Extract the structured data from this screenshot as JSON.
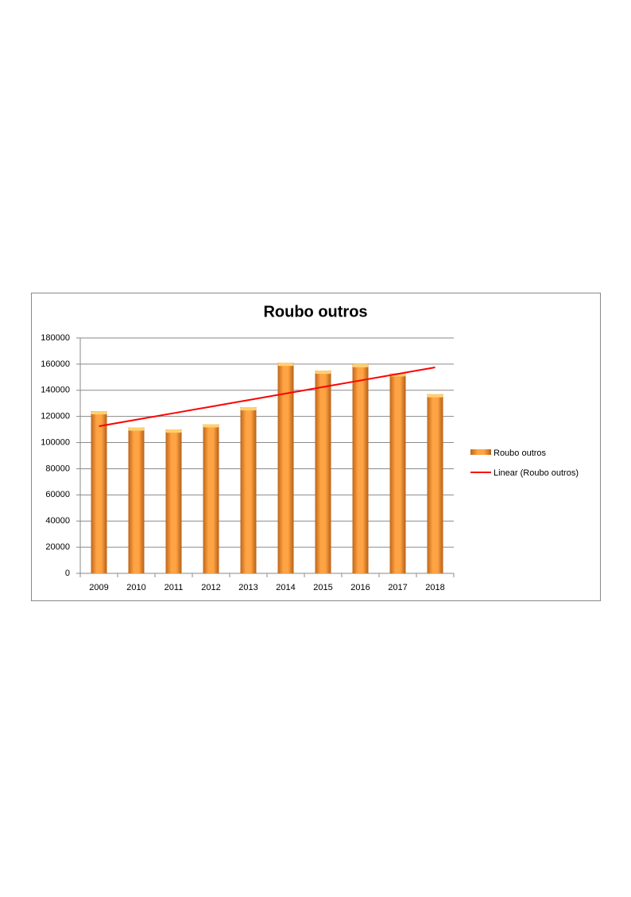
{
  "chart_data": {
    "type": "bar",
    "title": "Roubo outros",
    "categories": [
      "2009",
      "2010",
      "2011",
      "2012",
      "2013",
      "2014",
      "2015",
      "2016",
      "2017",
      "2018"
    ],
    "series": [
      {
        "name": "Roubo outros",
        "color": "#f7962f",
        "values": [
          124000,
          111500,
          110000,
          114000,
          127000,
          161000,
          155000,
          160000,
          153000,
          137000
        ]
      }
    ],
    "trendline": {
      "name": "Linear (Roubo outros)",
      "color": "#ff0000",
      "values": [
        112500,
        117500,
        122500,
        127500,
        132500,
        137500,
        142500,
        147500,
        152500,
        157500
      ]
    },
    "ylim": [
      0,
      180000
    ],
    "yticks": [
      0,
      20000,
      40000,
      60000,
      80000,
      100000,
      120000,
      140000,
      160000,
      180000
    ],
    "grid": true,
    "legend": "right"
  }
}
